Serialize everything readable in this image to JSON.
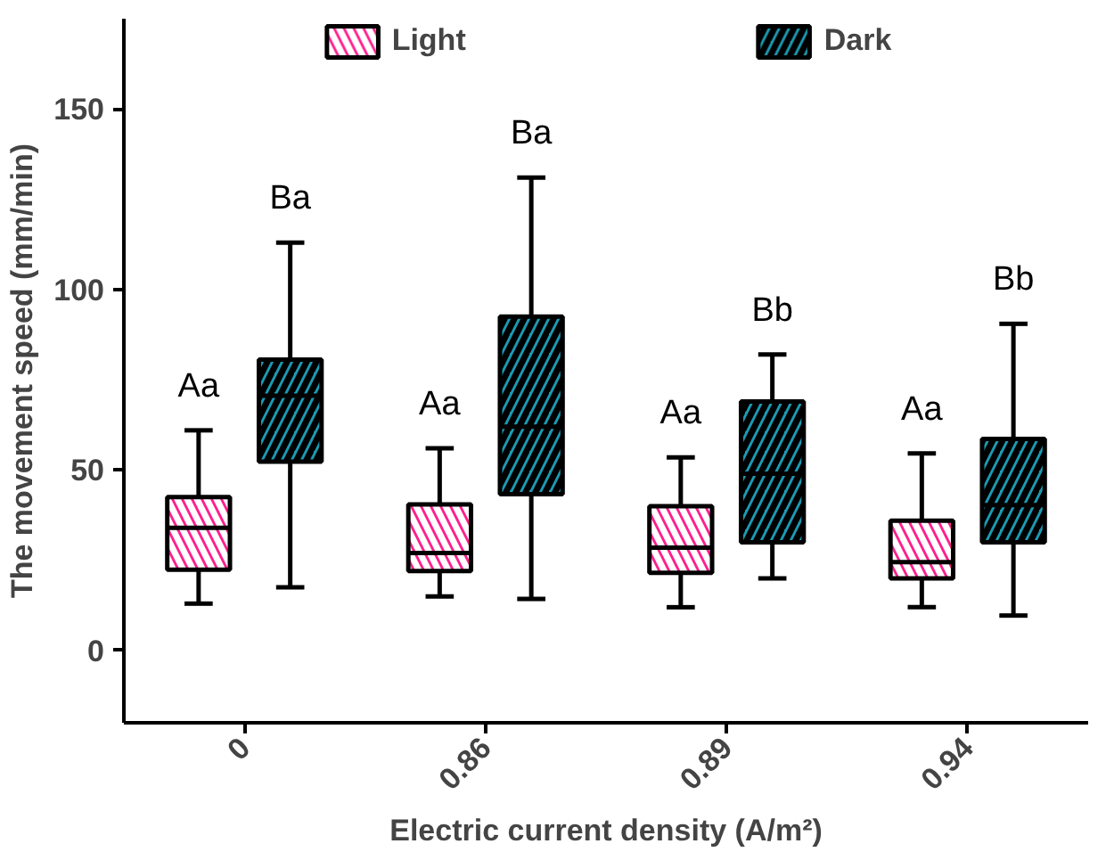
{
  "chart_data": {
    "type": "box",
    "xlabel": "Electric current density (A/m²)",
    "ylabel": "The movement speed (mm/min)",
    "categories": [
      "0",
      "0.86",
      "0.89",
      "0.94"
    ],
    "ylim": [
      -20,
      175
    ],
    "yticks": [
      0,
      50,
      100,
      150
    ],
    "grid": false,
    "legend": "top",
    "series": [
      {
        "name": "Light",
        "color": "#ff1f8e",
        "boxes": [
          {
            "low": 13,
            "q1": 22.4,
            "median": 34,
            "q3": 42.5,
            "high": 61
          },
          {
            "low": 15,
            "q1": 22,
            "median": 27,
            "q3": 40.5,
            "high": 56
          },
          {
            "low": 12,
            "q1": 21.5,
            "median": 28.5,
            "q3": 40,
            "high": 53.5
          },
          {
            "low": 12,
            "q1": 20,
            "median": 24.5,
            "q3": 36,
            "high": 54.6
          }
        ]
      },
      {
        "name": "Dark",
        "color": "#1b9ab3",
        "boxes": [
          {
            "low": 17.5,
            "q1": 52.3,
            "median": 70.6,
            "q3": 80.6,
            "high": 113
          },
          {
            "low": 14.3,
            "q1": 43.3,
            "median": 62,
            "q3": 92.5,
            "high": 131
          },
          {
            "low": 20,
            "q1": 30,
            "median": 49,
            "q3": 69,
            "high": 82
          },
          {
            "low": 9.7,
            "q1": 30,
            "median": 40.3,
            "q3": 58.6,
            "high": 90.5
          }
        ]
      }
    ],
    "annotations": [
      "Aa",
      "Ba",
      "Aa",
      "Ba",
      "Aa",
      "Bb",
      "Aa",
      "Bb"
    ]
  }
}
